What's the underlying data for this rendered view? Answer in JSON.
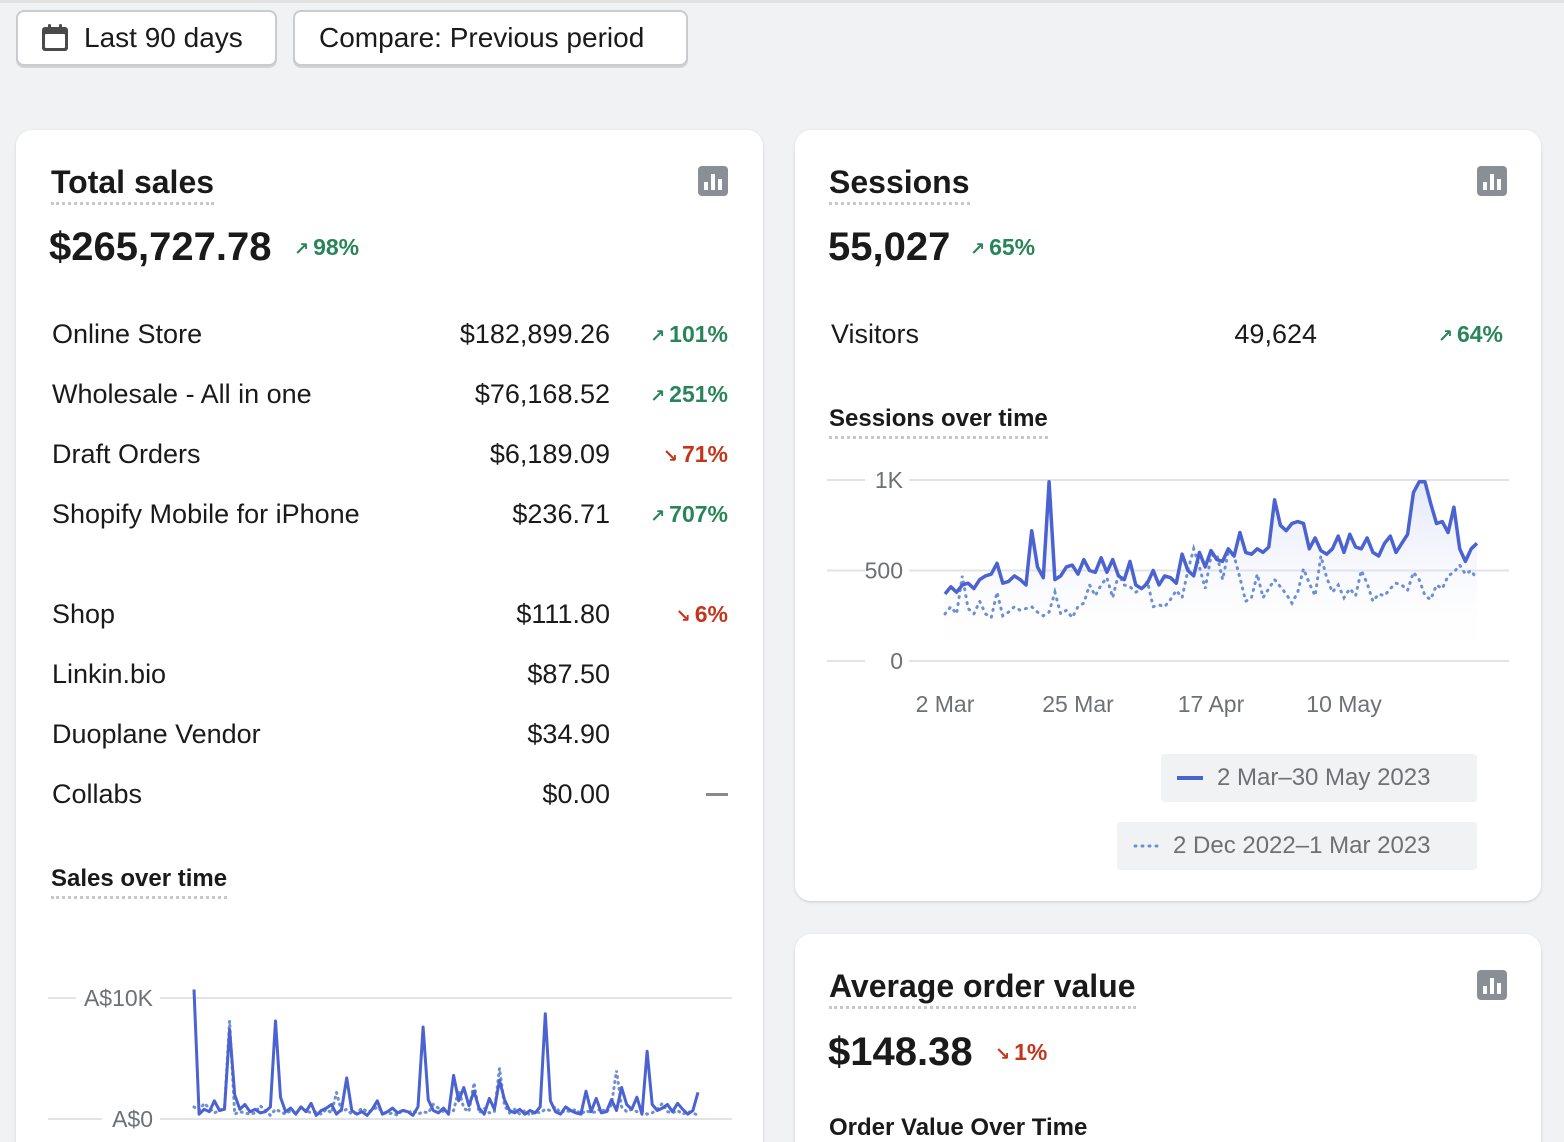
{
  "toolbar": {
    "date_range_label": "Last 90 days",
    "compare_label": "Compare: Previous period"
  },
  "total_sales": {
    "title": "Total sales",
    "value": "$265,727.78",
    "delta": "98%",
    "delta_direction": "up",
    "channels": [
      {
        "name": "Online Store",
        "value": "$182,899.26",
        "change": "101%",
        "direction": "up"
      },
      {
        "name": "Wholesale - All in one",
        "value": "$76,168.52",
        "change": "251%",
        "direction": "up"
      },
      {
        "name": "Draft Orders",
        "value": "$6,189.09",
        "change": "71%",
        "direction": "down"
      },
      {
        "name": "Shopify Mobile for iPhone",
        "value": "$236.71",
        "change": "707%",
        "direction": "up"
      },
      {
        "name": "Shop",
        "value": "$111.80",
        "change": "6%",
        "direction": "down"
      },
      {
        "name": "Linkin.bio",
        "value": "$87.50",
        "change": "",
        "direction": "none"
      },
      {
        "name": "Duoplane Vendor",
        "value": "$34.90",
        "change": "",
        "direction": "none"
      },
      {
        "name": "Collabs",
        "value": "$0.00",
        "change": "—",
        "direction": "flat"
      }
    ],
    "chart_title": "Sales over time",
    "y_ticks": [
      "A$10K",
      "A$0"
    ]
  },
  "sessions": {
    "title": "Sessions",
    "value": "55,027",
    "delta": "65%",
    "delta_direction": "up",
    "visitors_label": "Visitors",
    "visitors_value": "49,624",
    "visitors_delta": "64%",
    "chart_title": "Sessions over time",
    "legend_current": "2 Mar–30 May 2023",
    "legend_previous": "2 Dec 2022–1 Mar 2023"
  },
  "aov": {
    "title": "Average order value",
    "value": "$148.38",
    "delta": "1%",
    "delta_direction": "down",
    "chart_title": "Order Value Over Time"
  },
  "colors": {
    "current_series": "#4b62d1",
    "previous_series": "#6c8fd6",
    "up": "#29845a",
    "down": "#c4351a"
  },
  "icons": {
    "calendar": "calendar-icon",
    "chart": "bar-chart-icon",
    "up_arrow": "↗",
    "down_arrow": "↘"
  },
  "chart_data": [
    {
      "type": "line",
      "title": "Sessions over time",
      "ylim": [
        0,
        1000
      ],
      "y_ticks": [
        "1K",
        "500",
        "0"
      ],
      "x_ticks": [
        "2 Mar",
        "25 Mar",
        "17 Apr",
        "10 May"
      ],
      "series": [
        {
          "name": "2 Mar–30 May 2023",
          "values": [
            370,
            410,
            380,
            420,
            430,
            400,
            450,
            470,
            480,
            540,
            430,
            440,
            470,
            450,
            420,
            720,
            520,
            460,
            990,
            450,
            470,
            520,
            530,
            480,
            560,
            500,
            490,
            570,
            490,
            560,
            470,
            450,
            550,
            420,
            400,
            430,
            500,
            420,
            470,
            460,
            430,
            590,
            500,
            470,
            600,
            520,
            610,
            560,
            550,
            620,
            580,
            710,
            600,
            590,
            620,
            600,
            630,
            890,
            750,
            720,
            760,
            770,
            760,
            620,
            680,
            610,
            590,
            620,
            690,
            600,
            700,
            630,
            620,
            680,
            600,
            580,
            650,
            690,
            600,
            650,
            700,
            930,
            990,
            990,
            870,
            760,
            770,
            710,
            850,
            620,
            550,
            620,
            650
          ]
        },
        {
          "name": "2 Dec 2022–1 Mar 2023",
          "values": [
            260,
            300,
            260,
            470,
            290,
            260,
            330,
            260,
            240,
            380,
            250,
            270,
            300,
            280,
            290,
            300,
            270,
            250,
            270,
            380,
            260,
            280,
            240,
            300,
            320,
            420,
            360,
            420,
            460,
            350,
            480,
            420,
            410,
            380,
            400,
            440,
            300,
            310,
            300,
            340,
            390,
            350,
            500,
            620,
            520,
            400,
            580,
            590,
            450,
            600,
            580,
            460,
            330,
            350,
            480,
            350,
            400,
            450,
            410,
            370,
            320,
            380,
            510,
            430,
            360,
            580,
            460,
            380,
            420,
            350,
            400,
            360,
            500,
            430,
            330,
            370,
            360,
            400,
            430,
            420,
            390,
            490,
            450,
            360,
            340,
            420,
            400,
            470,
            490,
            530,
            480,
            500,
            450
          ]
        }
      ]
    },
    {
      "type": "line",
      "title": "Sales over time",
      "ylim": [
        0,
        12000
      ],
      "y_ticks": [
        "A$10K",
        "A$0"
      ],
      "series": [
        {
          "name": "current",
          "values": [
            10700,
            400,
            800,
            600,
            1500,
            700,
            800,
            7400,
            2000,
            800,
            1200,
            600,
            800,
            500,
            600,
            1000,
            8100,
            1800,
            600,
            900,
            400,
            1000,
            600,
            1300,
            300,
            700,
            900,
            1200,
            400,
            800,
            3400,
            700,
            400,
            600,
            300,
            800,
            1500,
            400,
            600,
            900,
            500,
            700,
            600,
            300,
            1000,
            7600,
            1600,
            700,
            500,
            900,
            400,
            3600,
            1500,
            2600,
            1100,
            2300,
            900,
            400,
            1700,
            800,
            3200,
            1600,
            700,
            500,
            800,
            400,
            700,
            500,
            1000,
            8700,
            1500,
            600,
            400,
            1000,
            700,
            500,
            400,
            2300,
            600,
            1700,
            500,
            600,
            1600,
            700,
            2600,
            1200,
            800,
            1800,
            400,
            5600,
            1200,
            700,
            900,
            1200,
            600,
            1300,
            800,
            400,
            700,
            2200
          ]
        },
        {
          "name": "previous",
          "values": [
            1000,
            700,
            1300,
            900,
            500,
            700,
            900,
            8100,
            400,
            600,
            500,
            400,
            500,
            1100,
            700,
            300,
            800,
            600,
            400,
            700,
            500,
            900,
            700,
            500,
            600,
            400,
            800,
            500,
            2200,
            600,
            800,
            400,
            500,
            900,
            600,
            700,
            1000,
            600,
            400,
            500,
            300,
            800,
            500,
            700,
            400,
            600,
            500,
            1200,
            900,
            600,
            500,
            700,
            2400,
            900,
            600,
            3000,
            500,
            900,
            500,
            600,
            4200,
            1100,
            500,
            800,
            400,
            700,
            300,
            600,
            500,
            800,
            700,
            1000,
            500,
            700,
            600,
            800,
            400,
            700,
            500,
            600,
            900,
            500,
            1200,
            4000,
            1000,
            600,
            800,
            600,
            700,
            400,
            500,
            800,
            1300,
            600,
            500,
            700,
            400,
            600,
            500,
            300
          ]
        }
      ]
    }
  ]
}
